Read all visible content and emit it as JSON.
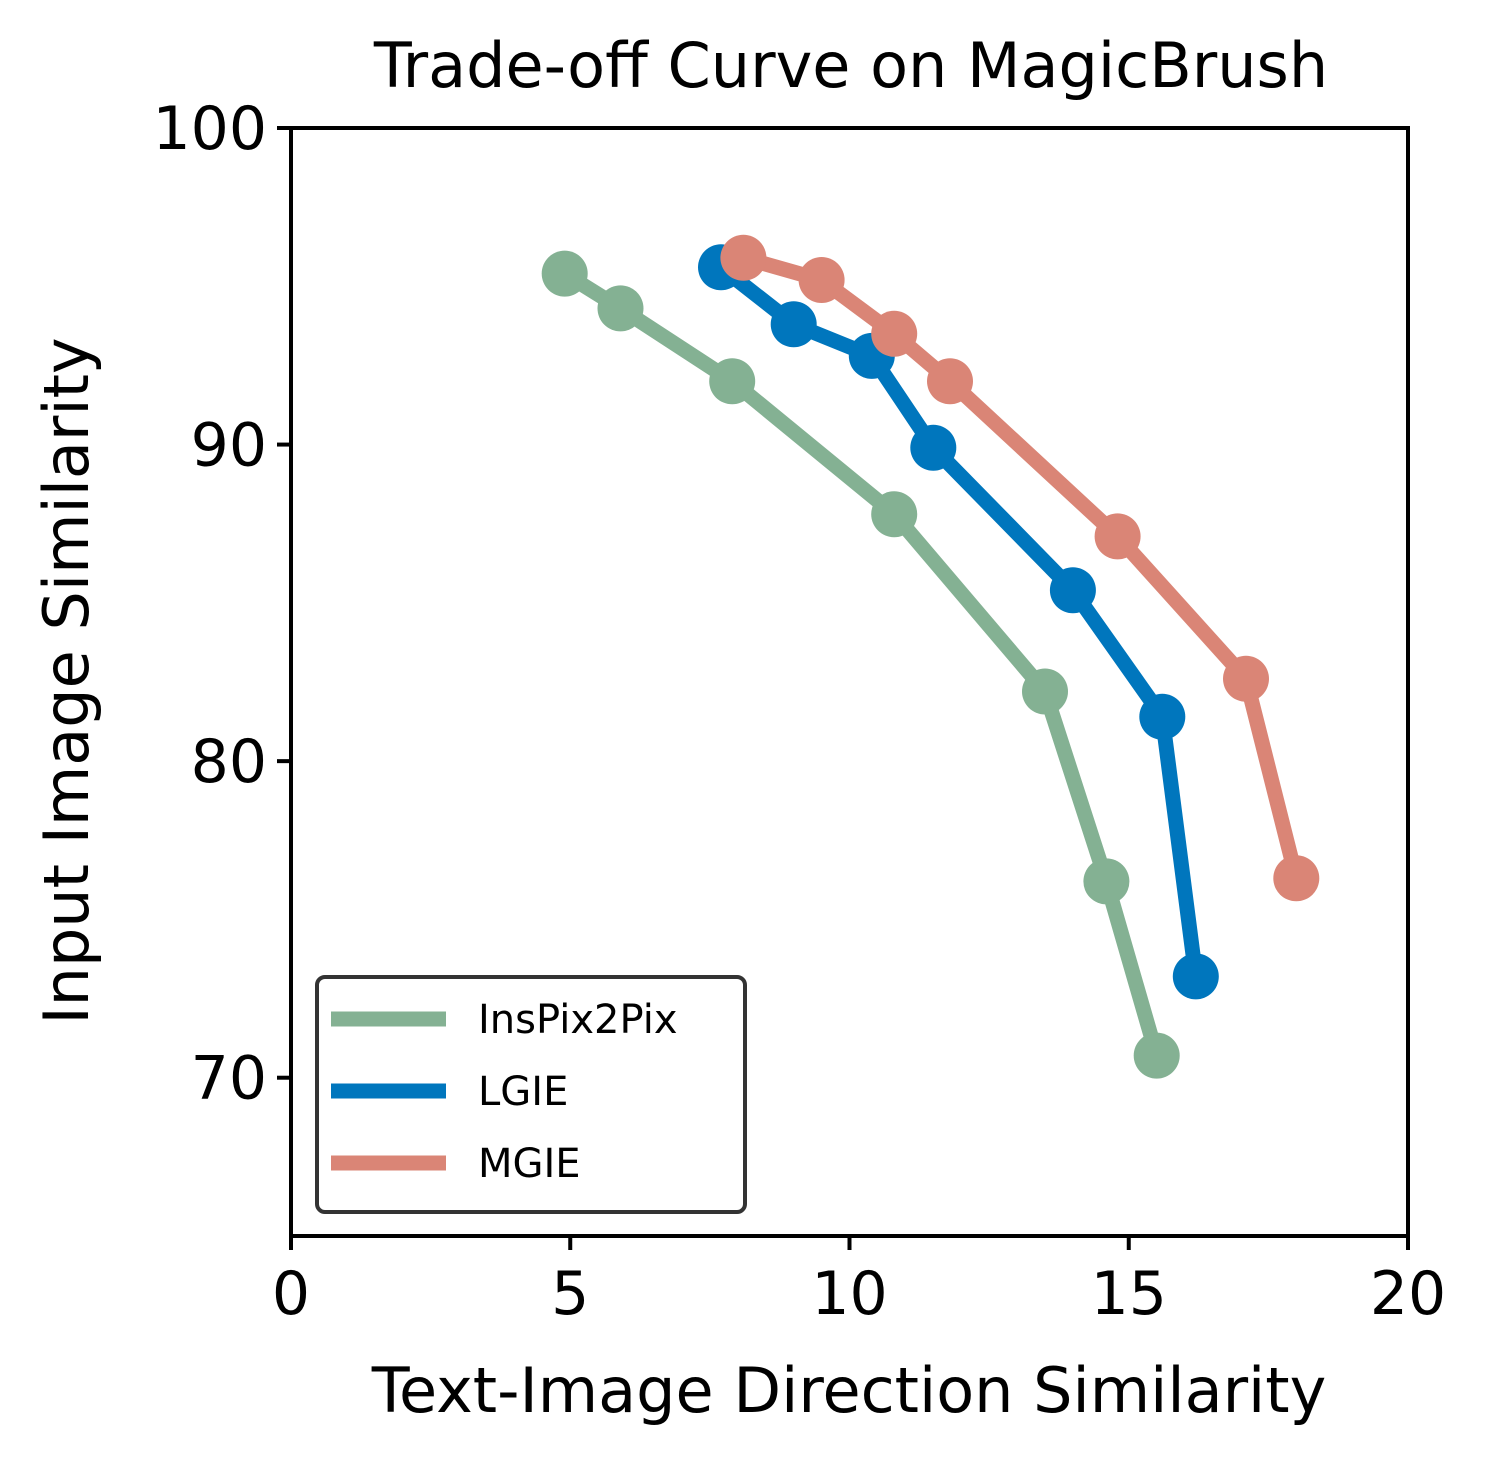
{
  "chart_data": {
    "type": "line",
    "title": "Trade-off Curve on MagicBrush",
    "xlabel": "Text-Image Direction Similarity",
    "ylabel": "Input Image Similarity",
    "xlim": [
      0,
      20
    ],
    "ylim": [
      65,
      100
    ],
    "xticks": [
      0,
      5,
      10,
      15,
      20
    ],
    "yticks": [
      70,
      80,
      90,
      100
    ],
    "grid": false,
    "legend_position": "lower-left",
    "series": [
      {
        "name": "InsPix2Pix",
        "color": "#84b193",
        "points": [
          [
            4.9,
            95.4
          ],
          [
            5.9,
            94.3
          ],
          [
            7.9,
            92.0
          ],
          [
            10.8,
            87.8
          ],
          [
            13.5,
            82.2
          ],
          [
            14.6,
            76.2
          ],
          [
            15.5,
            70.7
          ]
        ]
      },
      {
        "name": "LGIE",
        "color": "#0076bd",
        "points": [
          [
            7.7,
            95.6
          ],
          [
            9.0,
            93.8
          ],
          [
            10.4,
            92.8
          ],
          [
            11.5,
            89.9
          ],
          [
            14.0,
            85.4
          ],
          [
            15.6,
            81.4
          ],
          [
            16.2,
            73.2
          ]
        ]
      },
      {
        "name": "MGIE",
        "color": "#da8576",
        "points": [
          [
            8.1,
            95.9
          ],
          [
            9.5,
            95.2
          ],
          [
            10.8,
            93.5
          ],
          [
            11.8,
            92.0
          ],
          [
            14.8,
            87.1
          ],
          [
            17.1,
            82.6
          ],
          [
            18.0,
            76.3
          ]
        ]
      }
    ]
  }
}
